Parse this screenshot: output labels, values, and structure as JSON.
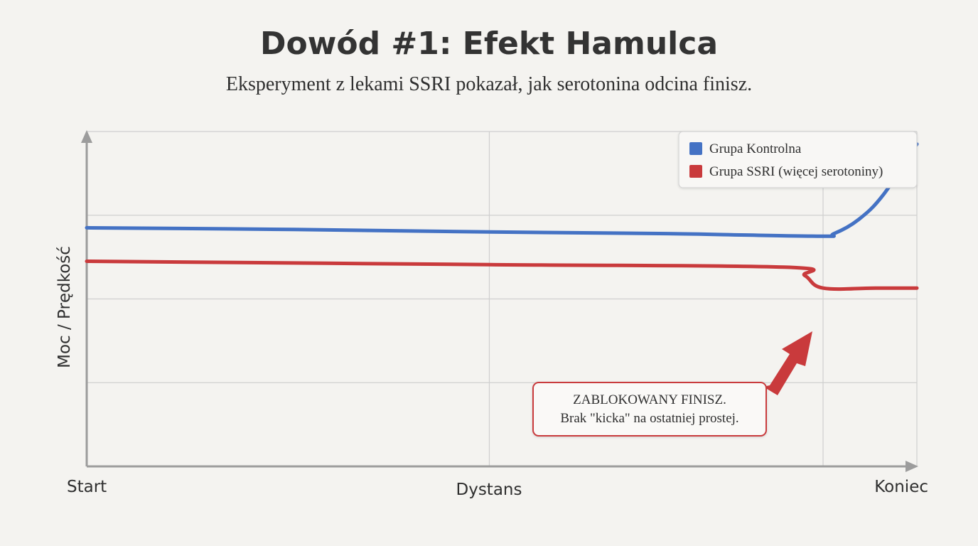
{
  "title": "Dowód #1: Efekt Hamulca",
  "subtitle": "Eksperyment z lekami SSRI pokazał, jak serotonina odcina finisz.",
  "colors": {
    "control": "#4472c4",
    "ssri": "#c93a3c",
    "grid": "#cfcfcf",
    "axis": "#9c9c9c"
  },
  "chart_data": {
    "type": "line",
    "title": "Dowód #1: Efekt Hamulca",
    "subtitle": "Eksperyment z lekami SSRI pokazał, jak serotonina odcina finisz.",
    "xlabel": "Dystans",
    "ylabel": "Moc / Prędkość",
    "x_tick_labels": [
      "Start",
      "Koniec"
    ],
    "xlim": [
      0,
      1
    ],
    "ylim": [
      0,
      4
    ],
    "grid": true,
    "legend_position": "top-right",
    "series": [
      {
        "name": "Grupa Kontrolna",
        "color": "#4472c4",
        "x": [
          0,
          0.25,
          0.485,
          0.7,
          0.88,
          0.9,
          0.93,
          0.96,
          1.0
        ],
        "y": [
          2.85,
          2.83,
          2.8,
          2.78,
          2.75,
          2.78,
          2.95,
          3.25,
          3.85
        ]
      },
      {
        "name": "Grupa SSRI (więcej serotoniny)",
        "color": "#c93a3c",
        "x": [
          0,
          0.485,
          0.84,
          0.865,
          0.887,
          0.95,
          1.0
        ],
        "y": [
          2.45,
          2.41,
          2.38,
          2.28,
          2.13,
          2.13,
          2.13
        ]
      }
    ],
    "annotation": {
      "lines": [
        "ZABLOKOWANY FINISZ.",
        "Brak \"kicka\" na ostatniej prostej."
      ],
      "points_to": {
        "x": 0.88,
        "y": 2.18
      }
    }
  }
}
